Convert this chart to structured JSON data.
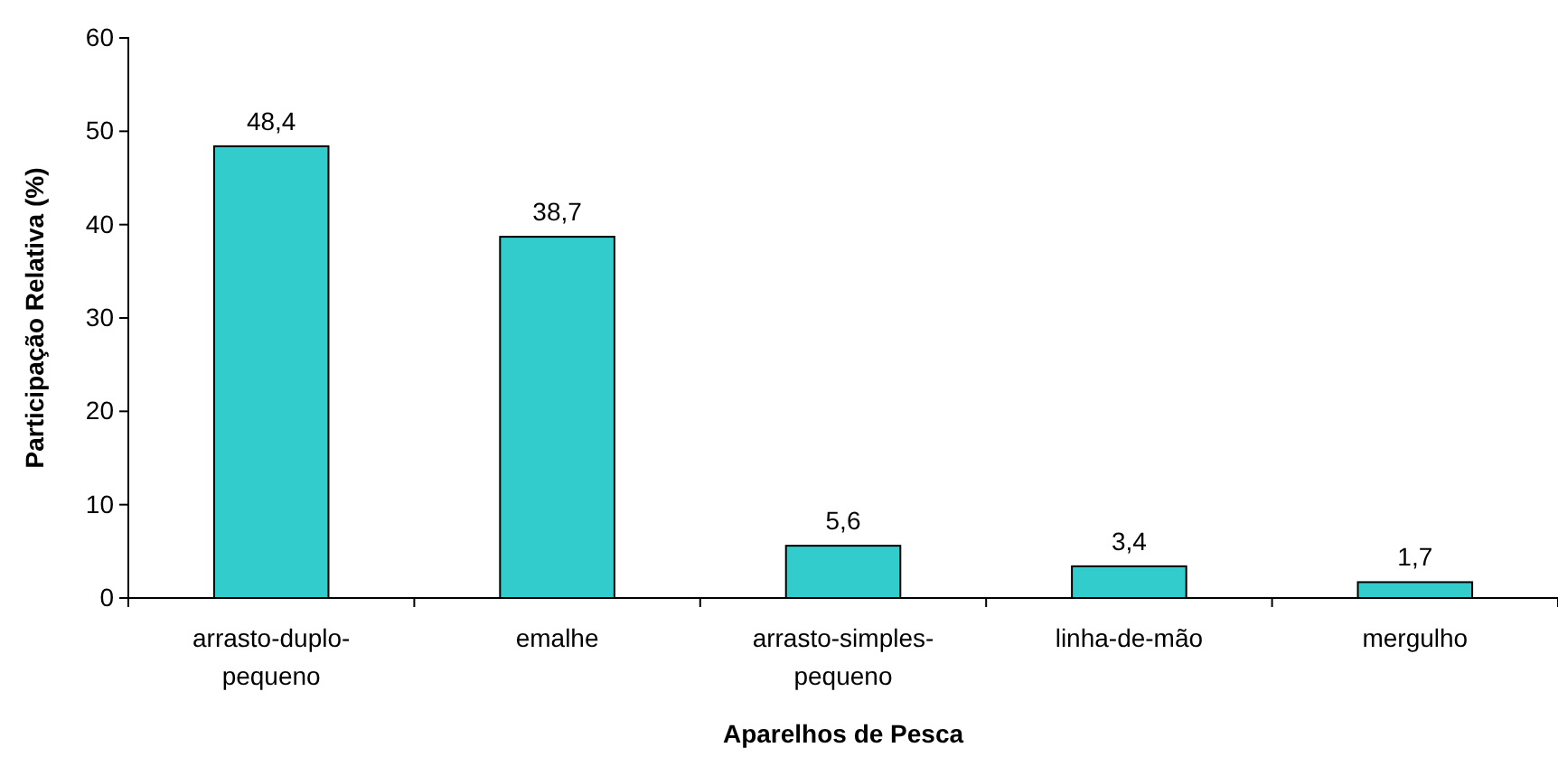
{
  "chart_data": {
    "type": "bar",
    "xlabel": "Aparelhos de Pesca",
    "ylabel": "Participação Relativa (%)",
    "categories": [
      "arrasto-duplo-pequeno",
      "emalhe",
      "arrasto-simples-pequeno",
      "linha-de-mão",
      "mergulho"
    ],
    "values": [
      48.4,
      38.7,
      5.6,
      3.4,
      1.7
    ],
    "value_labels": [
      "48,4",
      "38,7",
      "5,6",
      "3,4",
      "1,7"
    ],
    "color": "#33cccc",
    "ylim": [
      0,
      60
    ],
    "yticks": [
      0,
      10,
      20,
      30,
      40,
      50,
      60
    ],
    "grid": false
  }
}
